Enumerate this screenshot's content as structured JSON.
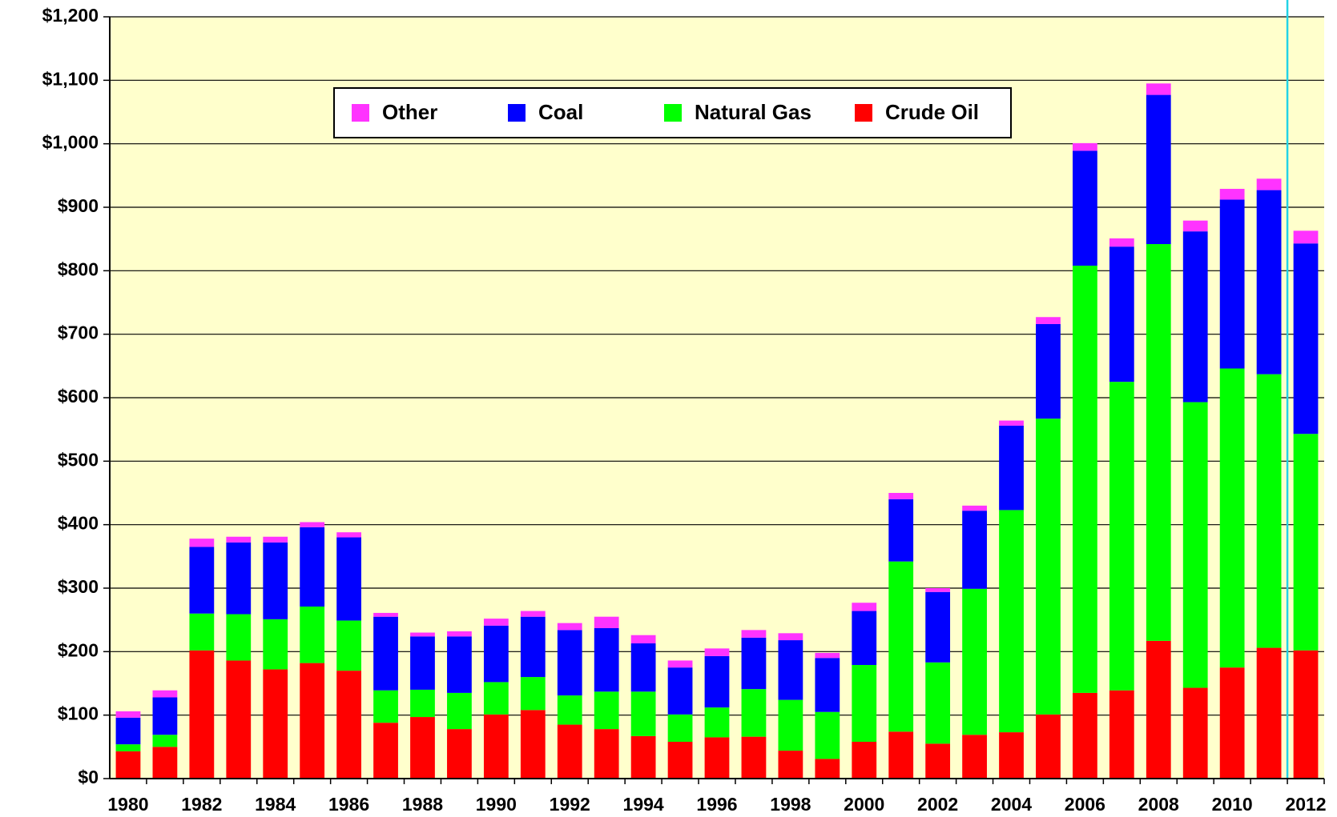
{
  "chart_data": {
    "type": "stacked-bar",
    "categories": [
      "1980",
      null,
      "1982",
      null,
      "1984",
      null,
      "1986",
      null,
      "1988",
      null,
      "1990",
      null,
      "1992",
      null,
      "1994",
      null,
      "1996",
      null,
      "1998",
      null,
      "2000",
      null,
      "2002",
      null,
      "2004",
      null,
      "2006",
      null,
      "2008",
      null,
      "2010",
      null,
      "2012"
    ],
    "series": [
      {
        "name": "Crude Oil",
        "color": "#ff0000",
        "values": [
          43,
          50,
          202,
          186,
          172,
          182,
          170,
          88,
          97,
          78,
          101,
          108,
          85,
          78,
          67,
          58,
          65,
          66,
          44,
          31,
          58,
          74,
          55,
          69,
          73,
          101,
          135,
          139,
          217,
          143,
          175,
          206,
          202
        ]
      },
      {
        "name": "Natural Gas",
        "color": "#00ff00",
        "values": [
          11,
          19,
          58,
          73,
          79,
          89,
          79,
          51,
          43,
          57,
          51,
          52,
          46,
          59,
          70,
          43,
          47,
          75,
          80,
          74,
          121,
          268,
          128,
          230,
          350,
          466,
          673,
          486,
          625,
          450,
          471,
          431,
          341
        ]
      },
      {
        "name": "Coal",
        "color": "#0000ff",
        "values": [
          42,
          59,
          105,
          113,
          121,
          125,
          131,
          116,
          84,
          89,
          89,
          95,
          103,
          100,
          76,
          74,
          81,
          81,
          94,
          85,
          85,
          98,
          111,
          123,
          133,
          149,
          181,
          213,
          235,
          269,
          266,
          290,
          300
        ]
      },
      {
        "name": "Other",
        "color": "#ff33ff",
        "values": [
          10,
          11,
          13,
          9,
          9,
          8,
          8,
          6,
          6,
          8,
          11,
          9,
          11,
          18,
          13,
          11,
          12,
          12,
          11,
          8,
          13,
          10,
          6,
          8,
          8,
          11,
          12,
          13,
          18,
          17,
          17,
          18,
          20
        ]
      }
    ],
    "ylim": [
      0,
      1200
    ],
    "yticks": [
      {
        "value": 0,
        "label": "$0"
      },
      {
        "value": 100,
        "label": "$100"
      },
      {
        "value": 200,
        "label": "$200"
      },
      {
        "value": 300,
        "label": "$300"
      },
      {
        "value": 400,
        "label": "$400"
      },
      {
        "value": 500,
        "label": "$500"
      },
      {
        "value": 600,
        "label": "$600"
      },
      {
        "value": 700,
        "label": "$700"
      },
      {
        "value": 800,
        "label": "$800"
      },
      {
        "value": 900,
        "label": "$900"
      },
      {
        "value": 1000,
        "label": "$1,000"
      },
      {
        "value": 1100,
        "label": "$1,100"
      },
      {
        "value": 1200,
        "label": "$1,200"
      }
    ],
    "grid": true,
    "legend_position": "top"
  }
}
